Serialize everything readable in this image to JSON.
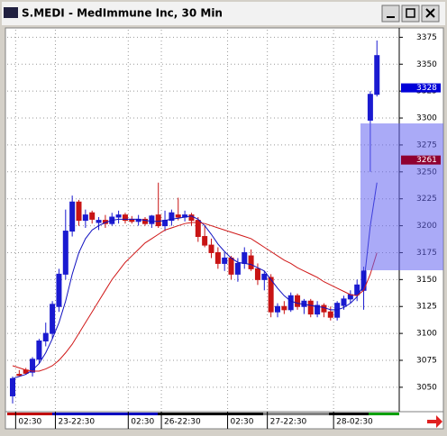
{
  "window_title": "S.MEDI - MedImmune Inc, 30 Min",
  "chart_data": {
    "type": "candlestick",
    "up_color": "#1a1ad0",
    "down_color": "#c81414",
    "open": [
      3042,
      3062,
      3066,
      3064,
      3076,
      3093,
      3100,
      3125,
      3155,
      3195,
      3222,
      3205,
      3212,
      3203,
      3205,
      3202,
      3208,
      3210,
      3206,
      3204,
      3206,
      3202,
      3210,
      3200,
      3205,
      3210,
      3208,
      3210,
      3205,
      3190,
      3182,
      3175,
      3165,
      3170,
      3155,
      3165,
      3172,
      3160,
      3150,
      3152,
      3120,
      3125,
      3122,
      3135,
      3125,
      3130,
      3118,
      3126,
      3120,
      3115,
      3126,
      3132,
      3136,
      3140,
      3298,
      3322
    ],
    "high": [
      3060,
      3066,
      3068,
      3078,
      3095,
      3110,
      3130,
      3160,
      3215,
      3228,
      3224,
      3215,
      3214,
      3208,
      3210,
      3212,
      3214,
      3212,
      3209,
      3210,
      3208,
      3210,
      3240,
      3214,
      3215,
      3226,
      3214,
      3212,
      3208,
      3200,
      3188,
      3180,
      3175,
      3172,
      3170,
      3180,
      3178,
      3165,
      3158,
      3155,
      3128,
      3130,
      3138,
      3137,
      3132,
      3132,
      3130,
      3128,
      3125,
      3130,
      3135,
      3140,
      3150,
      3162,
      3325,
      3372
    ],
    "low": [
      3035,
      3060,
      3062,
      3060,
      3072,
      3088,
      3095,
      3120,
      3150,
      3190,
      3200,
      3198,
      3202,
      3196,
      3198,
      3200,
      3202,
      3202,
      3202,
      3200,
      3200,
      3198,
      3198,
      3195,
      3200,
      3205,
      3204,
      3200,
      3185,
      3180,
      3170,
      3160,
      3158,
      3150,
      3148,
      3160,
      3158,
      3145,
      3140,
      3115,
      3115,
      3118,
      3120,
      3122,
      3118,
      3115,
      3115,
      3115,
      3112,
      3112,
      3122,
      3128,
      3130,
      3122,
      3250,
      3320
    ],
    "close": [
      3058,
      3061,
      3063,
      3076,
      3093,
      3100,
      3127,
      3155,
      3195,
      3222,
      3205,
      3210,
      3206,
      3205,
      3202,
      3208,
      3210,
      3205,
      3204,
      3206,
      3202,
      3209,
      3200,
      3205,
      3212,
      3208,
      3210,
      3205,
      3190,
      3182,
      3175,
      3165,
      3170,
      3155,
      3165,
      3175,
      3160,
      3150,
      3155,
      3120,
      3125,
      3122,
      3135,
      3125,
      3130,
      3118,
      3126,
      3120,
      3115,
      3128,
      3132,
      3136,
      3145,
      3158,
      3322,
      3358
    ],
    "ma_lines": [
      {
        "color": "#1010c0",
        "values": [
          3058,
          3060,
          3062,
          3066,
          3072,
          3082,
          3095,
          3110,
          3130,
          3155,
          3175,
          3188,
          3196,
          3200,
          3203,
          3205,
          3206,
          3206,
          3206,
          3206,
          3205,
          3204,
          3204,
          3205,
          3206,
          3207,
          3208,
          3209,
          3206,
          3200,
          3192,
          3183,
          3176,
          3170,
          3166,
          3165,
          3164,
          3161,
          3158,
          3150,
          3142,
          3135,
          3130,
          3128,
          3127,
          3126,
          3125,
          3124,
          3122,
          3122,
          3124,
          3128,
          3134,
          3145,
          3200,
          3240
        ]
      },
      {
        "color": "#d01818",
        "values": [
          3070,
          3068,
          3066,
          3065,
          3065,
          3067,
          3070,
          3075,
          3082,
          3090,
          3100,
          3110,
          3120,
          3130,
          3140,
          3150,
          3158,
          3166,
          3172,
          3178,
          3184,
          3188,
          3192,
          3196,
          3198,
          3200,
          3202,
          3203,
          3203,
          3202,
          3200,
          3198,
          3196,
          3194,
          3192,
          3190,
          3188,
          3184,
          3180,
          3176,
          3172,
          3168,
          3165,
          3161,
          3158,
          3155,
          3152,
          3148,
          3145,
          3142,
          3139,
          3136,
          3135,
          3140,
          3155,
          3175
        ]
      }
    ],
    "ylim": [
      3029,
      3382
    ],
    "yticks": [
      3050,
      3075,
      3100,
      3125,
      3150,
      3175,
      3200,
      3225,
      3250,
      3275,
      3300,
      3325,
      3350,
      3375
    ],
    "xticks": [
      {
        "value": 1,
        "label": "02:30"
      },
      {
        "value": 7,
        "label": "23-22:30"
      },
      {
        "value": 18,
        "label": "02:30"
      },
      {
        "value": 23,
        "label": "26-22:30"
      },
      {
        "value": 33,
        "label": "02:30"
      },
      {
        "value": 39,
        "label": "27-22:30"
      },
      {
        "value": 49,
        "label": "28-02:30"
      }
    ],
    "grid": true,
    "price_markers": [
      {
        "value": 3328,
        "color": "#0000d8"
      },
      {
        "value": 3261,
        "color": "#900030"
      }
    ]
  }
}
